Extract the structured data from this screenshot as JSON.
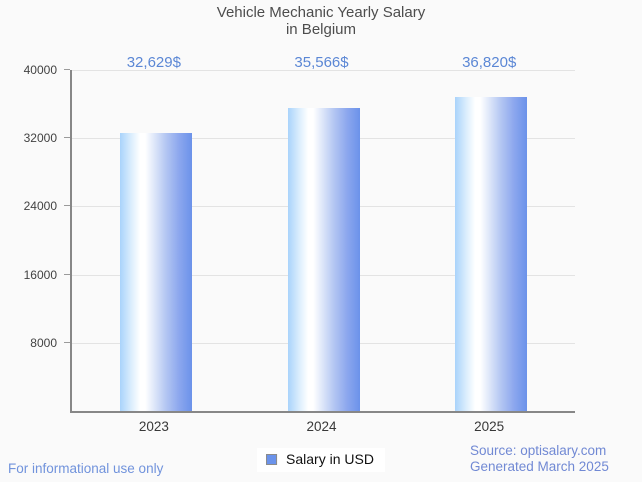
{
  "title": {
    "line1": "Vehicle Mechanic Yearly Salary",
    "line2": "in Belgium"
  },
  "chart_data": {
    "type": "bar",
    "title": "Vehicle Mechanic Yearly Salary in Belgium",
    "categories": [
      "2023",
      "2024",
      "2025"
    ],
    "values": [
      32629,
      35566,
      36820
    ],
    "value_labels": [
      "32,629$",
      "35,566$",
      "36,820$"
    ],
    "series_name": "Salary in USD",
    "xlabel": "",
    "ylabel": "",
    "ylim": [
      0,
      40000
    ],
    "yticks": [
      40000,
      32000,
      24000,
      16000,
      8000
    ],
    "grid": "horizontal",
    "legend_position": "bottom-center"
  },
  "legend": {
    "label": "Salary in USD"
  },
  "footer": {
    "disclaimer": "For informational use only",
    "source": "Source: optisalary.com",
    "generated": "Generated March 2025"
  },
  "colors": {
    "background": "#fafafa",
    "bar_gradient_left": "#a9d3fb",
    "bar_gradient_highlight": "#ffffff",
    "bar_gradient_right": "#6b92ea",
    "value_label_text": "#5b87d5",
    "footer_text": "#7193dc",
    "source_text": "#7189d4",
    "title_text": "#4d4d4d",
    "axis_line": "#878787",
    "gridline": "#e3e3e3",
    "legend_marker": "#6b93eb"
  }
}
